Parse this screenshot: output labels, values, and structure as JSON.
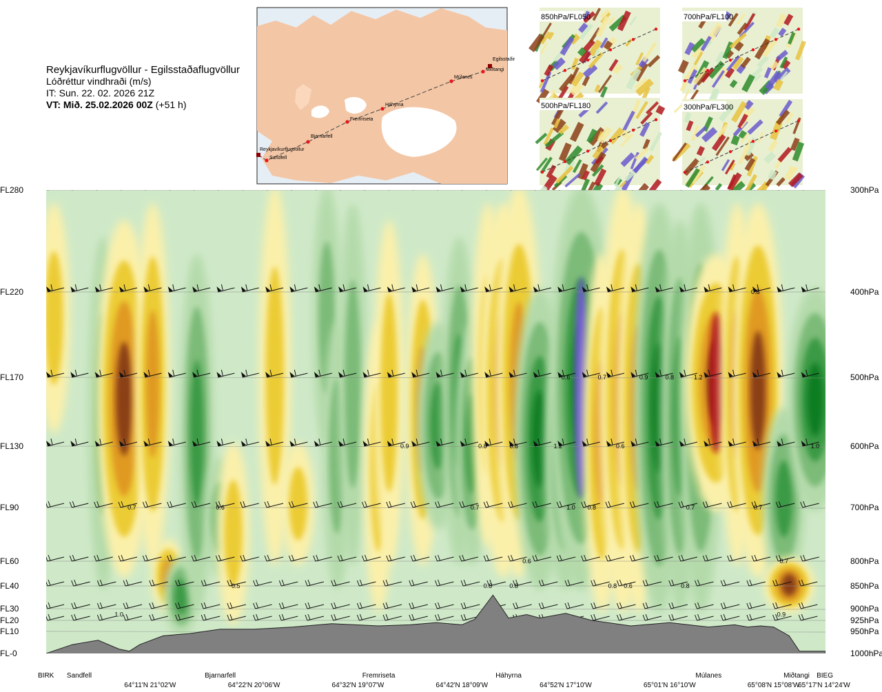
{
  "header": {
    "route": "Reykjavíkurflugvöllur - Egilsstaðaflugvöllur",
    "parameter": "Lóðréttur vindhraði (m/s)",
    "issued": "IT: Sun. 22. 02. 2026 21Z",
    "valid_bold": "VT: Mið. 25.02.2026 00Z",
    "valid_offset": "(+51 h)"
  },
  "overview_map": {
    "waypoints": [
      "Reykjavíkurflugvöllur",
      "Sandfell",
      "Bjarnarfell",
      "Fremriseta",
      "Háhyrna",
      "Múlanes",
      "Miðtangi",
      "Egilsstaðir"
    ],
    "land_color": "#f3c6a5",
    "sea_color": "#e6eef5",
    "ice_color": "#ffffff",
    "route_color": "#444444",
    "waypoint_color": "#e8141a"
  },
  "level_maps": [
    {
      "label": "850hPa/FL050"
    },
    {
      "label": "700hPa/FL100"
    },
    {
      "label": "500hPa/FL180"
    },
    {
      "label": "300hPa/FL300"
    }
  ],
  "chart_data": {
    "type": "heatmap",
    "title": "Lóðréttur vindhraði (m/s)",
    "flight_levels": [
      "FL280",
      "FL220",
      "FL170",
      "FL130",
      "FL90",
      "FL60",
      "FL40",
      "FL30",
      "FL20",
      "FL10",
      "FL-0"
    ],
    "pressure_levels": [
      "300hPa",
      "400hPa",
      "500hPa",
      "600hPa",
      "700hPa",
      "800hPa",
      "850hPa",
      "900hPa",
      "925hPa",
      "950hPa",
      "1000hPa"
    ],
    "fl_values": [
      280,
      220,
      170,
      130,
      90,
      60,
      40,
      30,
      20,
      10,
      0
    ],
    "waypoints": [
      "BIRK",
      "Sandfell",
      "Bjarnarfell",
      "Fremriseta",
      "Háhyrna",
      "Múlanes",
      "Miðtangi",
      "BIEG"
    ],
    "waypoint_km": [
      0,
      9,
      67,
      128,
      178,
      255,
      288,
      300
    ],
    "coordinates": [
      "64°11'N 21°02'W",
      "64°22'N 20°06'W",
      "64°32'N 19°07'W",
      "64°42'N 18°09'W",
      "64°52'N 17°10'W",
      "65°01'N 16°10'W",
      "65°08'N 15°08'W",
      "65°17'N 14°24'W"
    ],
    "coordinate_km": [
      40,
      80,
      120,
      160,
      200,
      240,
      280,
      310
    ],
    "distance_range_km": [
      0,
      300
    ],
    "terrain_profile": {
      "km": [
        0,
        10,
        20,
        28,
        32,
        36,
        45,
        55,
        67,
        80,
        95,
        110,
        128,
        140,
        150,
        160,
        165,
        172,
        178,
        185,
        190,
        200,
        210,
        225,
        240,
        255,
        265,
        270,
        275,
        280,
        286,
        290,
        300
      ],
      "fl": [
        0,
        4,
        6,
        2,
        1,
        4,
        8,
        9,
        12,
        12,
        14,
        17,
        15,
        16,
        18,
        16,
        21,
        36,
        22,
        25,
        22,
        26,
        20,
        15,
        18,
        14,
        16,
        14,
        15,
        14,
        8,
        1,
        1
      ]
    },
    "contour_levels_ms": [
      -1.2,
      -0.8,
      -0.6,
      -0.4,
      -0.2,
      -0.1,
      0.1,
      0.2,
      0.4,
      0.6,
      0.8,
      1.2
    ],
    "contour_colors": [
      "#6a5acd",
      "#4a86c5",
      "#0c7d22",
      "#3a9a44",
      "#7cbb78",
      "#b4daaa",
      "#cfe9c8",
      "#ffffff",
      "#fbf0aa",
      "#eccc36",
      "#e09a22",
      "#8b3f18",
      "#b0171f"
    ],
    "cells": [
      {
        "km": 3,
        "level": 1,
        "fl_from": 140,
        "fl_to": 270,
        "w": 0.45
      },
      {
        "km": 22,
        "level": 2,
        "fl_from": 40,
        "fl_to": 250,
        "w": 0.4
      },
      {
        "km": 30,
        "level": 1,
        "fl_from": 50,
        "fl_to": 260,
        "w": 1.0
      },
      {
        "km": 41,
        "level": 0,
        "fl_from": 60,
        "fl_to": 270,
        "w": 0.5
      },
      {
        "km": 47,
        "level": 0,
        "fl_from": 30,
        "fl_to": 70,
        "w": 0.5
      },
      {
        "km": 52,
        "level": 0,
        "fl_from": 10,
        "fl_to": 60,
        "w": 0.5
      },
      {
        "km": 58,
        "level": 0,
        "fl_from": 30,
        "fl_to": 240,
        "w": 0.5
      },
      {
        "km": 67,
        "level": 1,
        "fl_from": 50,
        "fl_to": 120,
        "w": 0.45
      },
      {
        "km": 72,
        "level": 0,
        "fl_from": 20,
        "fl_to": 130,
        "w": 0.45
      },
      {
        "km": 88,
        "level": 0,
        "fl_from": 60,
        "fl_to": 280,
        "w": 0.45
      },
      {
        "km": 97,
        "level": 0,
        "fl_from": 60,
        "fl_to": 130,
        "w": 0.45
      },
      {
        "km": 108,
        "level": 0,
        "fl_from": 130,
        "fl_to": 280,
        "w": 0.35
      },
      {
        "km": 112,
        "level": 0,
        "fl_from": 40,
        "fl_to": 200,
        "w": 0.35
      },
      {
        "km": 118,
        "level": 0,
        "fl_from": 60,
        "fl_to": 270,
        "w": 0.35
      },
      {
        "km": 128,
        "level": 0,
        "fl_from": 30,
        "fl_to": 200,
        "w": 0.4
      },
      {
        "km": 132,
        "level": 0,
        "fl_from": 60,
        "fl_to": 260,
        "w": 0.4
      },
      {
        "km": 145,
        "level": 0,
        "fl_from": 60,
        "fl_to": 240,
        "w": 0.5
      },
      {
        "km": 151,
        "level": 0,
        "fl_from": 80,
        "fl_to": 200,
        "w": 0.7
      },
      {
        "km": 159,
        "level": 0,
        "fl_from": 60,
        "fl_to": 250,
        "w": 0.5
      },
      {
        "km": 164,
        "level": 0,
        "fl_from": 60,
        "fl_to": 200,
        "w": 0.5
      },
      {
        "km": 170,
        "level": 0,
        "fl_from": 70,
        "fl_to": 270,
        "w": 0.45
      },
      {
        "km": 176,
        "level": 0,
        "fl_from": 50,
        "fl_to": 270,
        "w": 0.8
      },
      {
        "km": 182,
        "level": 0,
        "fl_from": 50,
        "fl_to": 280,
        "w": 0.8
      },
      {
        "km": 190,
        "level": 2,
        "fl_from": 40,
        "fl_to": 220,
        "w": 0.9
      },
      {
        "km": 200,
        "level": 0,
        "fl_from": 40,
        "fl_to": 200,
        "w": 0.7
      },
      {
        "km": 206,
        "level": 1,
        "fl_from": 40,
        "fl_to": 280,
        "w": 1.2
      },
      {
        "km": 214,
        "level": 0,
        "fl_from": 30,
        "fl_to": 240,
        "w": 0.6
      },
      {
        "km": 222,
        "level": 0,
        "fl_from": 30,
        "fl_to": 280,
        "w": 0.8
      },
      {
        "km": 228,
        "level": 0,
        "fl_from": 30,
        "fl_to": 270,
        "w": 0.7
      },
      {
        "km": 236,
        "level": 2,
        "fl_from": 30,
        "fl_to": 270,
        "w": 0.9
      },
      {
        "km": 244,
        "level": 0,
        "fl_from": 30,
        "fl_to": 260,
        "w": 0.6
      },
      {
        "km": 252,
        "level": 0,
        "fl_from": 30,
        "fl_to": 270,
        "w": 0.7
      },
      {
        "km": 258,
        "level": 2,
        "fl_from": 90,
        "fl_to": 240,
        "w": 1.2
      },
      {
        "km": 266,
        "level": 0,
        "fl_from": 60,
        "fl_to": 270,
        "w": 0.5
      },
      {
        "km": 274,
        "level": 1,
        "fl_from": 50,
        "fl_to": 270,
        "w": 0.9
      },
      {
        "km": 284,
        "level": 0,
        "fl_from": 40,
        "fl_to": 150,
        "w": 0.7
      },
      {
        "km": 286,
        "level": 1,
        "fl_from": 30,
        "fl_to": 60,
        "w": 0.9
      },
      {
        "km": 296,
        "level": 1,
        "fl_from": 90,
        "fl_to": 220,
        "w": 1.0
      }
    ],
    "value_labels": [
      {
        "km": 33,
        "fl": 90,
        "text": "0.7"
      },
      {
        "km": 67,
        "fl": 90,
        "text": "0.6"
      },
      {
        "km": 138,
        "fl": 130,
        "text": "0.9"
      },
      {
        "km": 165,
        "fl": 90,
        "text": "0.7"
      },
      {
        "km": 168,
        "fl": 130,
        "text": "0.8"
      },
      {
        "km": 180,
        "fl": 130,
        "text": "0.8"
      },
      {
        "km": 185,
        "fl": 60,
        "text": "0.6"
      },
      {
        "km": 170,
        "fl": 40,
        "text": "0.8"
      },
      {
        "km": 180,
        "fl": 40,
        "text": "0.8"
      },
      {
        "km": 200,
        "fl": 170,
        "text": "0.6"
      },
      {
        "km": 197,
        "fl": 130,
        "text": "1.2"
      },
      {
        "km": 202,
        "fl": 90,
        "text": "1.0"
      },
      {
        "km": 210,
        "fl": 90,
        "text": "0.8"
      },
      {
        "km": 214,
        "fl": 170,
        "text": "0.7"
      },
      {
        "km": 221,
        "fl": 130,
        "text": "0.6"
      },
      {
        "km": 218,
        "fl": 40,
        "text": "0.8"
      },
      {
        "km": 224,
        "fl": 40,
        "text": "0.6"
      },
      {
        "km": 230,
        "fl": 170,
        "text": "0.9"
      },
      {
        "km": 240,
        "fl": 170,
        "text": "0.8"
      },
      {
        "km": 248,
        "fl": 90,
        "text": "0.7"
      },
      {
        "km": 246,
        "fl": 40,
        "text": "0.8"
      },
      {
        "km": 251,
        "fl": 170,
        "text": "1.2"
      },
      {
        "km": 273,
        "fl": 220,
        "text": "0.8"
      },
      {
        "km": 274,
        "fl": 90,
        "text": "0.7"
      },
      {
        "km": 284,
        "fl": 60,
        "text": "0.7"
      },
      {
        "km": 283,
        "fl": 25,
        "text": "0.9"
      },
      {
        "km": 296,
        "fl": 130,
        "text": "1.0"
      },
      {
        "km": 28,
        "fl": 25,
        "text": "1.0"
      },
      {
        "km": 73,
        "fl": 40,
        "text": "0.5"
      }
    ],
    "grid": true
  }
}
